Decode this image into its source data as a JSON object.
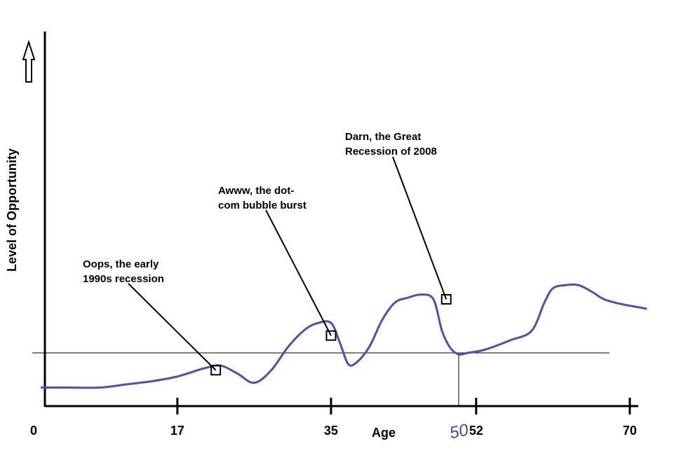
{
  "chart_data": {
    "type": "line",
    "xlabel": "Age",
    "ylabel": "Level of Opportunity",
    "xlim": [
      0,
      72
    ],
    "x_ticks": [
      {
        "value": 0,
        "label": "0"
      },
      {
        "value": 17,
        "label": "17"
      },
      {
        "value": 35,
        "label": "35"
      },
      {
        "value": 52,
        "label": "52"
      },
      {
        "value": 70,
        "label": "70"
      }
    ],
    "handwritten_label": {
      "x": 50,
      "text": "50"
    },
    "baseline_y": 0,
    "ylim": [
      -1.5,
      9.5
    ],
    "grid": false,
    "series": [
      {
        "color": "#4a4fc0",
        "x": [
          1,
          4,
          8,
          11,
          14,
          17,
          20,
          22,
          24,
          26,
          28,
          30,
          32,
          33.5,
          35,
          36,
          37,
          38,
          39.5,
          41,
          42.5,
          44,
          45.5,
          47,
          48,
          49,
          50,
          51,
          53,
          56,
          58.5,
          60,
          61,
          62.5,
          64,
          65.5,
          67,
          69,
          71,
          72
        ],
        "y": [
          -1.1,
          -1.1,
          -1.1,
          -1.0,
          -0.9,
          -0.75,
          -0.5,
          -0.4,
          -0.65,
          -0.95,
          -0.55,
          0.2,
          0.75,
          0.95,
          0.95,
          0.35,
          -0.35,
          -0.3,
          0.2,
          1.05,
          1.6,
          1.75,
          1.85,
          1.7,
          0.7,
          0.15,
          -0.05,
          0.0,
          0.1,
          0.4,
          0.7,
          1.6,
          2.05,
          2.15,
          2.15,
          1.95,
          1.7,
          1.55,
          1.45,
          1.4
        ]
      }
    ],
    "markers": [
      {
        "x": 21.5,
        "y": -0.55,
        "label": "Oops, the early 1990s recession",
        "lines": [
          "Oops, the early",
          "1990s recession"
        ]
      },
      {
        "x": 35,
        "y": 0.55,
        "label": "Awww, the dot-com bubble burst",
        "lines": [
          "Awww, the dot-",
          "com bubble burst"
        ]
      },
      {
        "x": 48.5,
        "y": 1.7,
        "label": "Darn, the Great Recession of 2008",
        "lines": [
          "Darn, the Great",
          "Recession of 2008"
        ]
      }
    ],
    "arrow": "up"
  }
}
